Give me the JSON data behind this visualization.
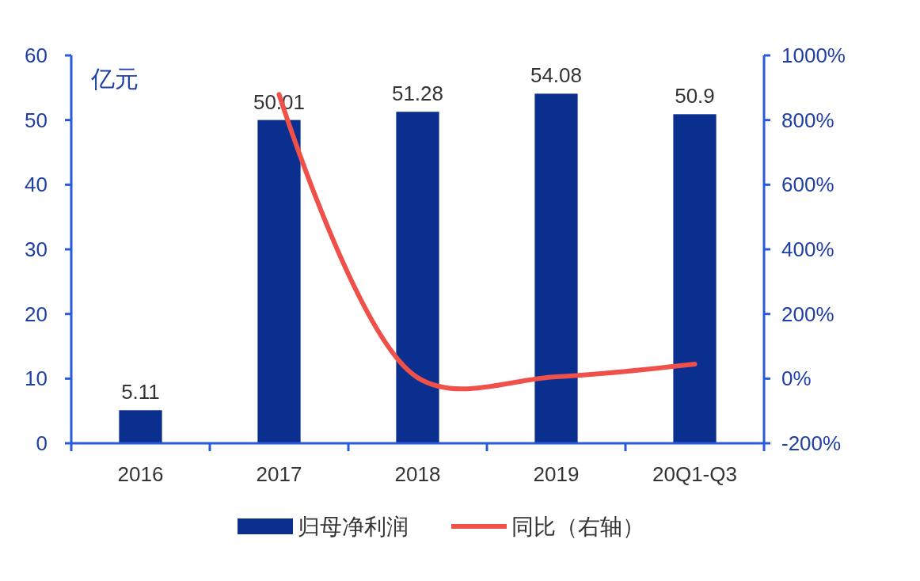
{
  "chart_data": {
    "type": "bar",
    "ylabel": "亿元",
    "categories": [
      "2016",
      "2017",
      "2018",
      "2019",
      "20Q1-Q3"
    ],
    "series": [
      {
        "name": "归母净利润",
        "color": "#0a2f8f",
        "values": [
          5.11,
          50.01,
          51.28,
          54.08,
          50.9
        ],
        "value_labels": [
          "5.11",
          "50.01",
          "51.28",
          "54.08",
          "50.9"
        ]
      },
      {
        "name": "同比（右轴）",
        "type": "line",
        "axis": "y2",
        "color": "#ef5049",
        "values": [
          null,
          879,
          3,
          6,
          45
        ]
      }
    ],
    "ylim": [
      0,
      60
    ],
    "yticks": [
      0,
      10,
      20,
      30,
      40,
      50,
      60
    ],
    "y2lim": [
      -200,
      1000
    ],
    "y2ticks": [
      {
        "value": -200,
        "label": "-200%"
      },
      {
        "value": 0,
        "label": "0%"
      },
      {
        "value": 200,
        "label": "200%"
      },
      {
        "value": 400,
        "label": "400%"
      },
      {
        "value": 600,
        "label": "600%"
      },
      {
        "value": 800,
        "label": "800%"
      },
      {
        "value": 1000,
        "label": "1000%"
      }
    ],
    "legend": "bottom",
    "grid": false,
    "marker": "none"
  }
}
